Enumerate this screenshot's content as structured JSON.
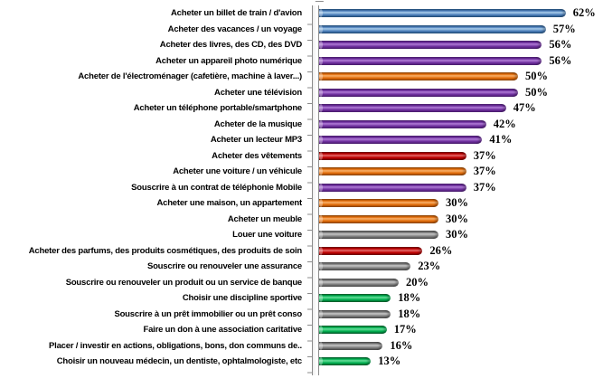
{
  "chart_data": {
    "type": "bar",
    "orientation": "horizontal",
    "title": "",
    "xlabel": "",
    "ylabel": "",
    "unit": "%",
    "xlim": [
      0,
      70
    ],
    "grid": false,
    "legend": "none",
    "value_label_format": "{value}%",
    "palette": {
      "blue": "#4f81bd",
      "purple": "#7030a0",
      "orange": "#e36c0a",
      "red": "#c00000",
      "gray": "#808080",
      "green": "#00b050"
    },
    "categories": [
      "Acheter un billet de train / d'avion",
      "Acheter des vacances / un voyage",
      "Acheter des livres, des CD, des DVD",
      "Acheter un appareil photo numérique",
      "Acheter de l'électroménager (cafetière, machine à laver...)",
      "Acheter une télévision",
      "Acheter un téléphone portable/smartphone",
      "Acheter de la musique",
      "Acheter un lecteur MP3",
      "Acheter des vêtements",
      "Acheter une voiture / un véhicule",
      "Souscrire à un contrat de téléphonie Mobile",
      "Acheter une maison, un appartement",
      "Acheter un meuble",
      "Louer une voiture",
      "Acheter des parfums, des produits cosmétiques, des produits de soin",
      "Souscrire ou renouveler une assurance",
      "Souscrire ou renouveler un produit ou un service de banque",
      "Choisir une discipline sportive",
      "Souscrire à un prêt immobilier ou un prêt conso",
      "Faire un don à une association caritative",
      "Placer / investir en actions, obligations, bons, don communs de..",
      "Choisir un nouveau médecin, un dentiste, ophtalmologiste, etc"
    ],
    "values": [
      62,
      57,
      56,
      56,
      50,
      50,
      47,
      42,
      41,
      37,
      37,
      37,
      30,
      30,
      30,
      26,
      23,
      20,
      18,
      18,
      17,
      16,
      13
    ],
    "value_labels": [
      "62%",
      "57%",
      "56%",
      "56%",
      "50%",
      "50%",
      "47%",
      "42%",
      "41%",
      "37%",
      "37%",
      "37%",
      "30%",
      "30%",
      "30%",
      "26%",
      "23%",
      "20%",
      "18%",
      "18%",
      "17%",
      "16%",
      "13%"
    ],
    "bar_colors": [
      "blue",
      "blue",
      "purple",
      "purple",
      "orange",
      "purple",
      "purple",
      "purple",
      "purple",
      "red",
      "orange",
      "purple",
      "orange",
      "orange",
      "gray",
      "red",
      "gray",
      "gray",
      "green",
      "gray",
      "green",
      "gray",
      "green"
    ]
  }
}
